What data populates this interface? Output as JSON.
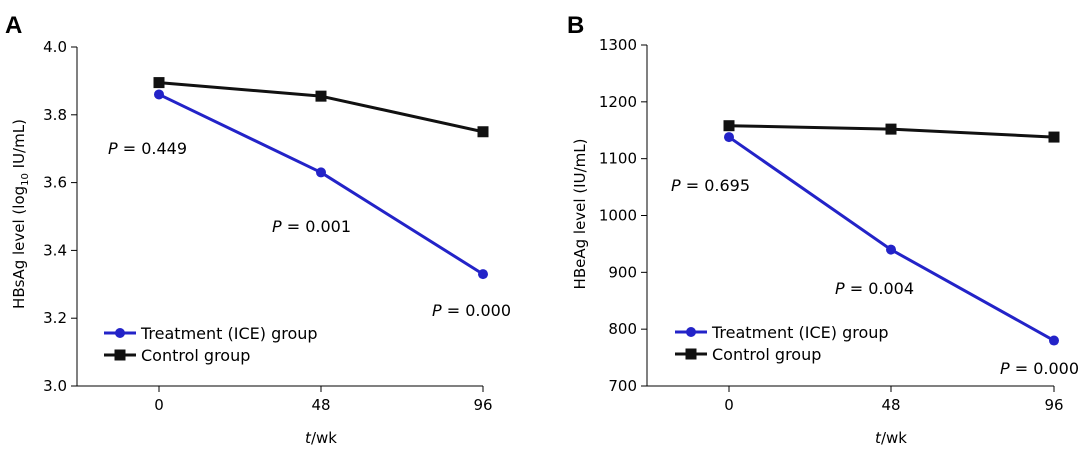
{
  "chart_data": [
    {
      "panel": "A",
      "type": "line",
      "x": [
        0,
        48,
        96
      ],
      "xticks": [
        "0",
        "48",
        "96"
      ],
      "xlabel_italic": "t",
      "xlabel_rest": "/wk",
      "ylabel_main": "HBsAg level (log",
      "ylabel_sub": "10",
      "ylabel_end": " IU/mL)",
      "ylim": [
        3.0,
        4.0
      ],
      "yticks": [
        "3.0",
        "3.2",
        "3.4",
        "3.6",
        "3.8",
        "4.0"
      ],
      "series": [
        {
          "name": "Treatment (ICE) group",
          "color": "#2323c8",
          "marker": "circle",
          "values": [
            3.86,
            3.63,
            3.33
          ]
        },
        {
          "name": "Control group",
          "color": "#111111",
          "marker": "square",
          "values": [
            3.895,
            3.855,
            3.75
          ]
        }
      ],
      "annotations": [
        {
          "x": 0,
          "p_italic": "P",
          "p_text": " = 0.449"
        },
        {
          "x": 48,
          "p_italic": "P",
          "p_text": " = 0.001"
        },
        {
          "x": 96,
          "p_italic": "P",
          "p_text": " = 0.000"
        }
      ],
      "grid": false,
      "legend": "bottom-left"
    },
    {
      "panel": "B",
      "type": "line",
      "x": [
        0,
        48,
        96
      ],
      "xticks": [
        "0",
        "48",
        "96"
      ],
      "xlabel_italic": "t",
      "xlabel_rest": "/wk",
      "ylabel_main": "HBeAg level (IU/mL)",
      "ylabel_sub": "",
      "ylabel_end": "",
      "ylim": [
        700,
        1300
      ],
      "yticks": [
        "700",
        "800",
        "900",
        "1000",
        "1100",
        "1200",
        "1300"
      ],
      "series": [
        {
          "name": "Treatment (ICE) group",
          "color": "#2323c8",
          "marker": "circle",
          "values": [
            1138,
            940,
            780
          ]
        },
        {
          "name": "Control group",
          "color": "#111111",
          "marker": "square",
          "values": [
            1158,
            1152,
            1138
          ]
        }
      ],
      "annotations": [
        {
          "x": 0,
          "p_italic": "P",
          "p_text": " = 0.695"
        },
        {
          "x": 48,
          "p_italic": "P",
          "p_text": " = 0.004"
        },
        {
          "x": 96,
          "p_italic": "P",
          "p_text": " = 0.000"
        }
      ],
      "grid": false,
      "legend": "bottom-left"
    }
  ]
}
